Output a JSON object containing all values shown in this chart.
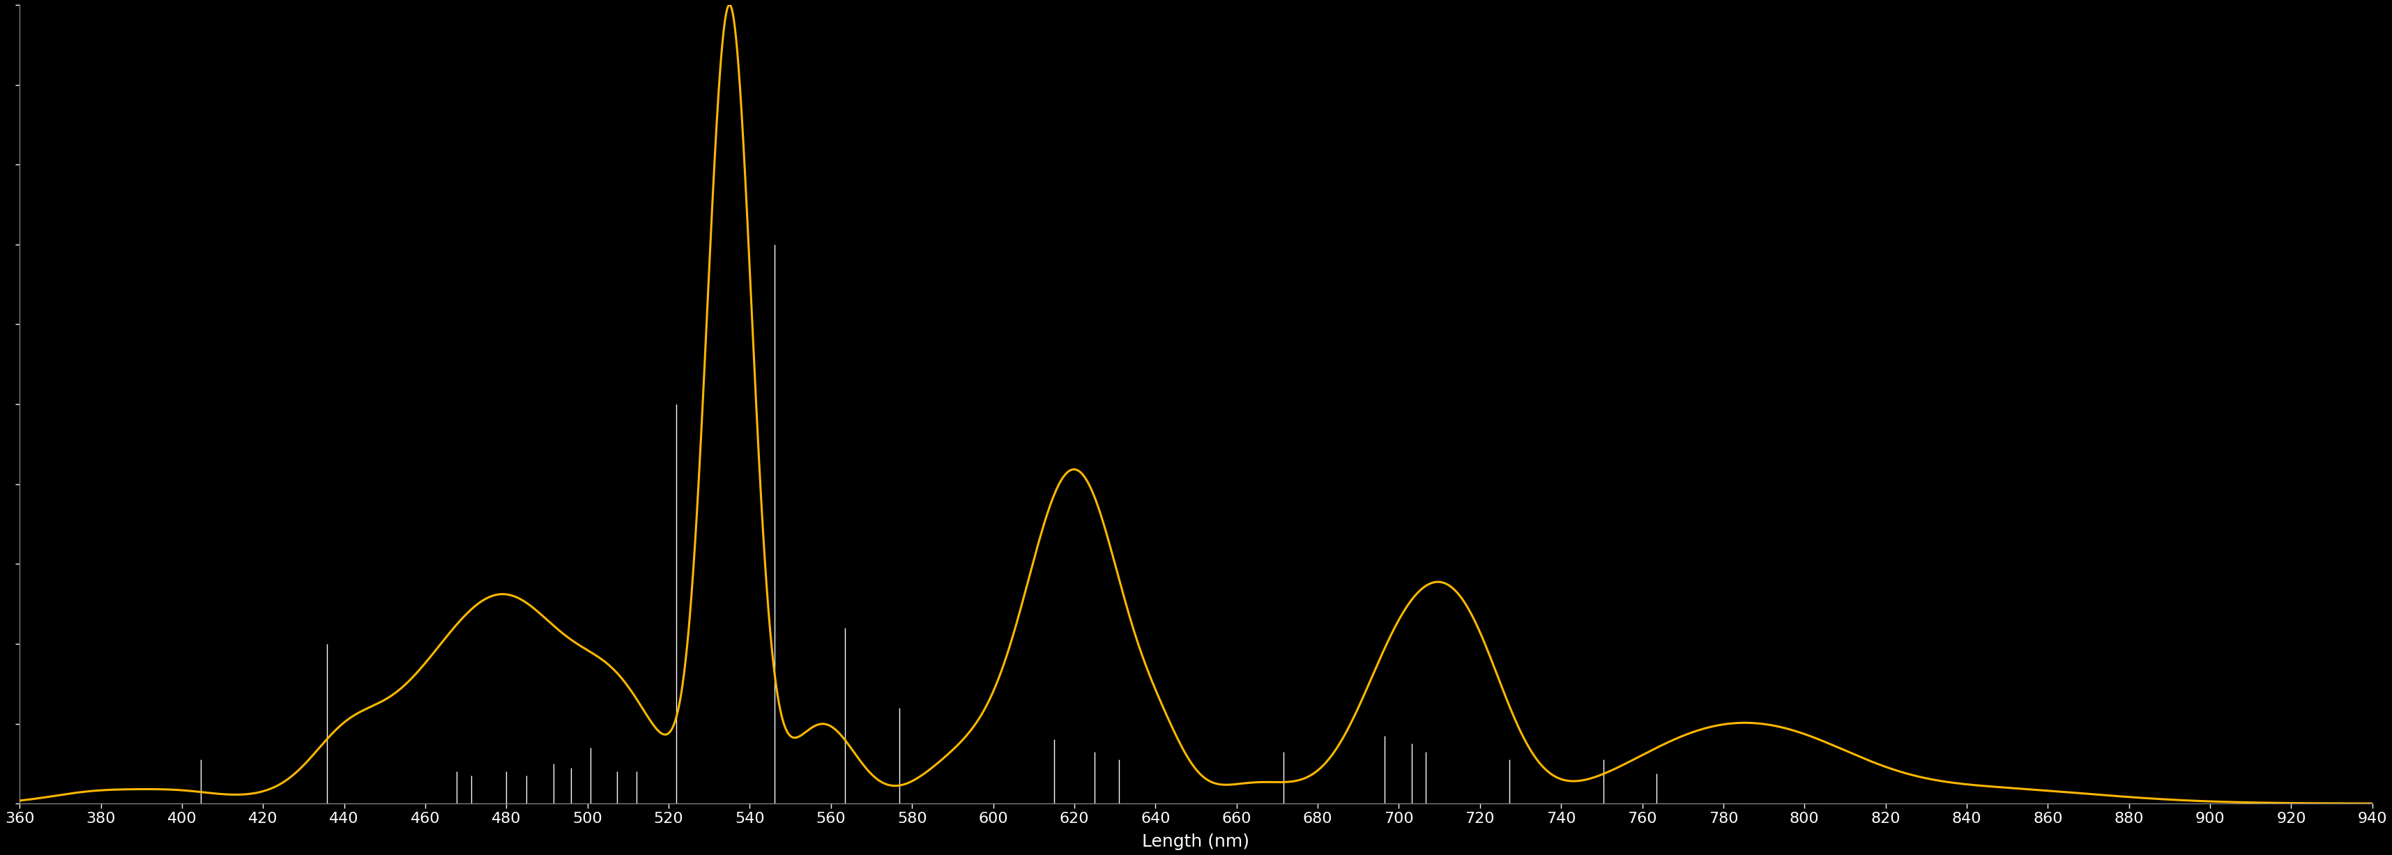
{
  "background_color": "#000000",
  "curve_color": "#FFB800",
  "line_color": "#FFFFFF",
  "xlabel": "Length (nm)",
  "xlabel_color": "#FFFFFF",
  "tick_color": "#FFFFFF",
  "axis_color": "#808080",
  "xmin": 360,
  "xmax": 940,
  "ymin": 0,
  "ymax": 1.0,
  "xticks": [
    360,
    380,
    400,
    420,
    440,
    460,
    480,
    500,
    520,
    540,
    560,
    580,
    600,
    620,
    640,
    660,
    680,
    700,
    720,
    740,
    760,
    780,
    800,
    820,
    840,
    860,
    880,
    900,
    920,
    940
  ],
  "emission_lines": [
    {
      "wl": 404.7,
      "intensity": 0.055
    },
    {
      "wl": 435.8,
      "intensity": 0.2
    },
    {
      "wl": 467.8,
      "intensity": 0.04
    },
    {
      "wl": 471.3,
      "intensity": 0.035
    },
    {
      "wl": 480.0,
      "intensity": 0.04
    },
    {
      "wl": 485.0,
      "intensity": 0.035
    },
    {
      "wl": 491.6,
      "intensity": 0.05
    },
    {
      "wl": 496.0,
      "intensity": 0.045
    },
    {
      "wl": 500.7,
      "intensity": 0.07
    },
    {
      "wl": 507.3,
      "intensity": 0.04
    },
    {
      "wl": 512.0,
      "intensity": 0.04
    },
    {
      "wl": 521.8,
      "intensity": 0.5
    },
    {
      "wl": 546.1,
      "intensity": 0.7
    },
    {
      "wl": 563.5,
      "intensity": 0.22
    },
    {
      "wl": 576.9,
      "intensity": 0.12
    },
    {
      "wl": 615.0,
      "intensity": 0.08
    },
    {
      "wl": 625.0,
      "intensity": 0.065
    },
    {
      "wl": 631.0,
      "intensity": 0.055
    },
    {
      "wl": 671.6,
      "intensity": 0.065
    },
    {
      "wl": 696.5,
      "intensity": 0.085
    },
    {
      "wl": 703.2,
      "intensity": 0.075
    },
    {
      "wl": 706.7,
      "intensity": 0.065
    },
    {
      "wl": 727.3,
      "intensity": 0.055
    },
    {
      "wl": 750.4,
      "intensity": 0.055
    },
    {
      "wl": 763.5,
      "intensity": 0.038
    }
  ]
}
